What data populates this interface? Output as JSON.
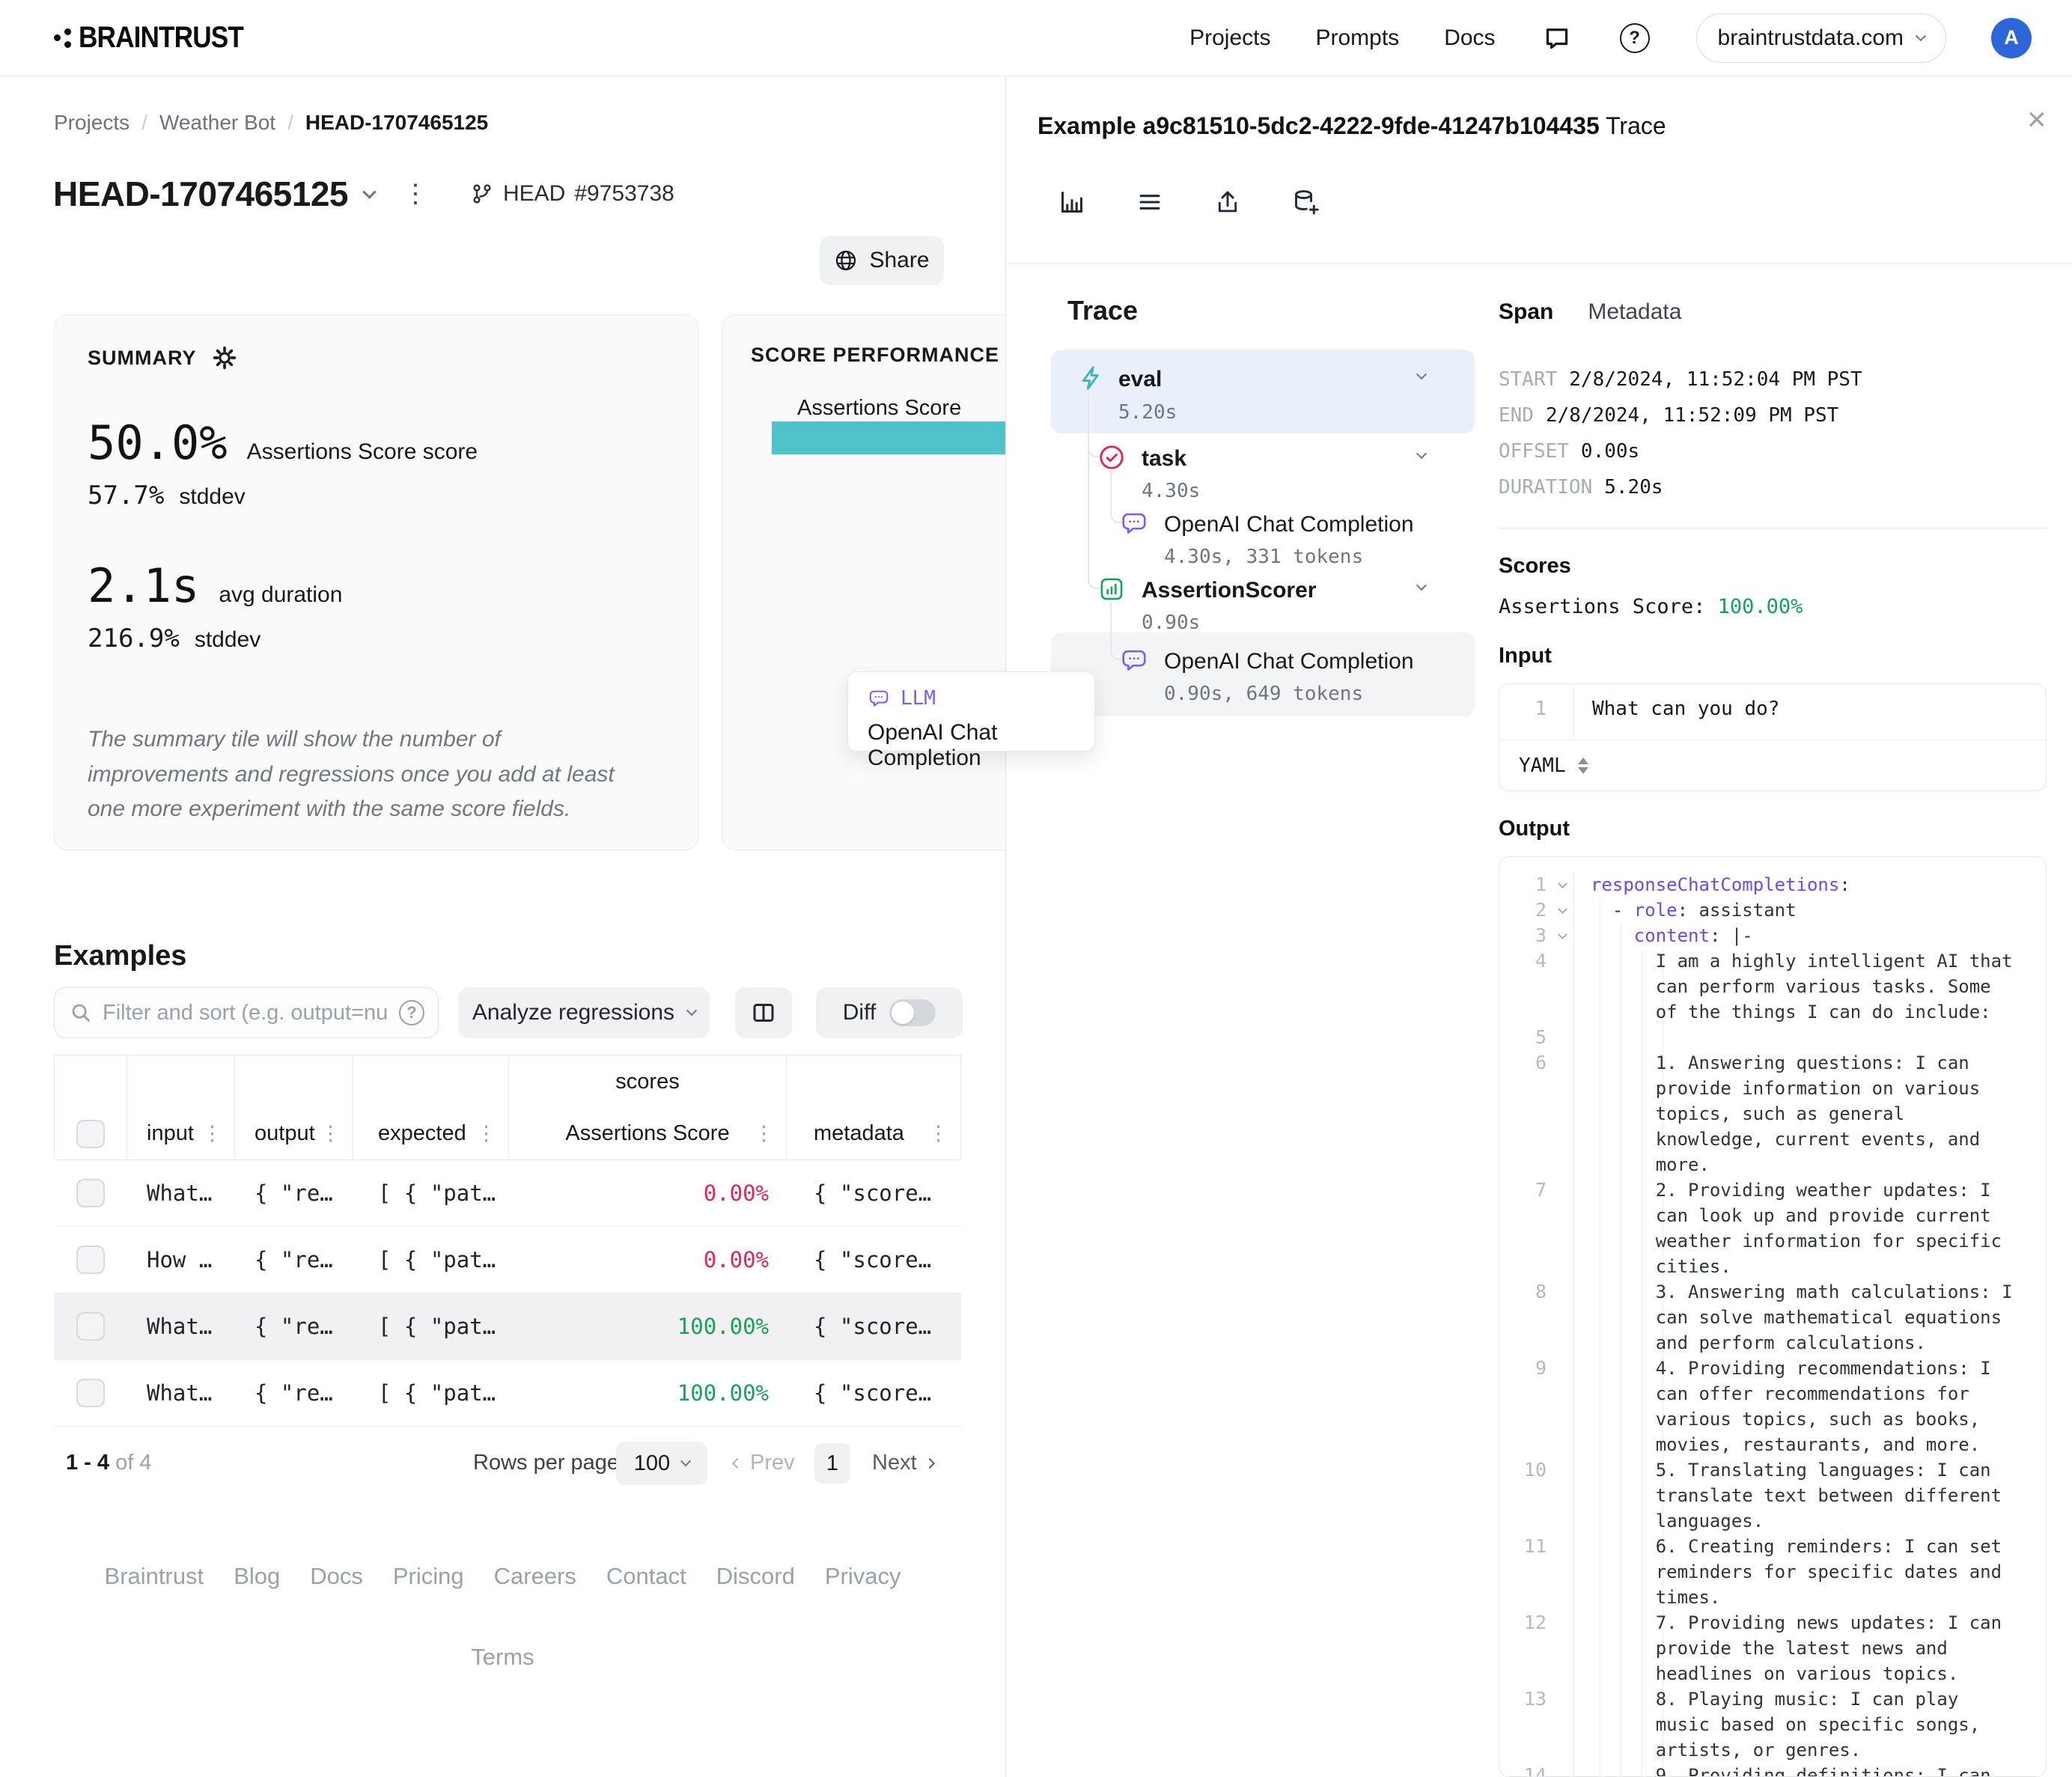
{
  "icons": {
    "kebab": "⋮",
    "close": "×",
    "help": "?"
  },
  "nav": {
    "items": [
      {
        "label": "Projects"
      },
      {
        "label": "Prompts"
      },
      {
        "label": "Docs"
      }
    ],
    "logo_text": "BRAINTRUST",
    "org": "braintrustdata.com",
    "avatar_initial": "A"
  },
  "breadcrumb": {
    "separator": "/",
    "items": [
      "Projects",
      "Weather Bot",
      "HEAD-1707465125"
    ]
  },
  "experiment": {
    "title": "HEAD-1707465125",
    "branch": "HEAD",
    "commit": "#9753738",
    "share_label": "Share"
  },
  "summary": {
    "heading": "SUMMARY",
    "score_value": "50.0%",
    "score_label": "Assertions Score score",
    "score_stddev": "57.7%",
    "stddev_label": "stddev",
    "duration_value": "2.1s",
    "duration_label": "avg duration",
    "duration_stddev": "216.9%",
    "note": "The summary tile will show the number of improvements and regressions once you add at least one more experiment with the same score fields."
  },
  "score_performance": {
    "heading": "SCORE PERFORMANCE OVER TIME",
    "series_label": "Assertions Score",
    "bar_color": "#4ec3ca",
    "chart_data": {
      "type": "bar",
      "categories": [
        "Assertions Score"
      ],
      "values": [
        50.0
      ],
      "title": "SCORE PERFORMANCE OVER TIME"
    }
  },
  "tooltip": {
    "type_label": "LLM",
    "title": "OpenAI Chat Completion"
  },
  "examples": {
    "heading": "Examples",
    "filter_placeholder": "Filter and sort (e.g. output=nu",
    "analyze_button": "Analyze regressions",
    "diff_label": "Diff",
    "scores_group": "scores",
    "columns": [
      "input",
      "output",
      "expected",
      "Assertions Score",
      "metadata"
    ],
    "rows": [
      {
        "input": "What…",
        "output": "{ \"re…",
        "expected": "[ { \"pat…",
        "score": "0.00%",
        "score_state": "fail",
        "metadata": "{ \"score…",
        "highlighted": false
      },
      {
        "input": "How …",
        "output": "{ \"re…",
        "expected": "[ { \"pat…",
        "score": "0.00%",
        "score_state": "fail",
        "metadata": "{ \"score…",
        "highlighted": false
      },
      {
        "input": "What…",
        "output": "{ \"re…",
        "expected": "[ { \"pat…",
        "score": "100.00%",
        "score_state": "pass",
        "metadata": "{ \"score…",
        "highlighted": true
      },
      {
        "input": "What…",
        "output": "{ \"re…",
        "expected": "[ { \"pat…",
        "score": "100.00%",
        "score_state": "pass",
        "metadata": "{ \"score…",
        "highlighted": false
      }
    ],
    "pagination": {
      "range": "1 - 4",
      "of": "of 4",
      "rows_per_page_label": "Rows per page:",
      "rows_per_page": "100",
      "prev": "Prev",
      "page": "1",
      "next": "Next"
    }
  },
  "footer": {
    "links": [
      "Braintrust",
      "Blog",
      "Docs",
      "Pricing",
      "Careers",
      "Contact",
      "Discord",
      "Privacy"
    ],
    "terms": "Terms"
  },
  "trace_panel": {
    "title_id": "Example a9c81510-5dc2-4222-9fde-41247b104435",
    "title_suffix": " Trace",
    "heading": "Trace",
    "nodes": [
      {
        "label": "eval",
        "duration": "5.20s",
        "type": "eval"
      },
      {
        "label": "task",
        "duration": "4.30s",
        "type": "task"
      },
      {
        "label": "OpenAI Chat Completion",
        "duration": "4.30s, 331 tokens",
        "type": "llm"
      },
      {
        "label": "AssertionScorer",
        "duration": "0.90s",
        "type": "scorer"
      },
      {
        "label": "OpenAI Chat Completion",
        "duration": "0.90s, 649 tokens",
        "type": "llm"
      }
    ]
  },
  "span_detail": {
    "tabs": [
      "Span",
      "Metadata"
    ],
    "fields": [
      {
        "label": "START",
        "value": "2/8/2024, 11:52:04 PM PST"
      },
      {
        "label": "END",
        "value": "2/8/2024, 11:52:09 PM PST"
      },
      {
        "label": "OFFSET",
        "value": "0.00s"
      },
      {
        "label": "DURATION",
        "value": "5.20s"
      }
    ],
    "scores_heading": "Scores",
    "score_name": "Assertions Score: ",
    "score_value": "100.00%",
    "input_heading": "Input",
    "input_line_no": "1",
    "input_value": "What can you do?",
    "format_label": "YAML",
    "output_heading": "Output",
    "output_lines": [
      {
        "n": "1",
        "fold": true,
        "indent": 0,
        "parts": [
          {
            "k": "responseChatCompletions"
          },
          {
            "p": ":"
          }
        ]
      },
      {
        "n": "2",
        "fold": true,
        "indent": 2,
        "parts": [
          {
            "p": "- "
          },
          {
            "k": "role"
          },
          {
            "p": ": assistant"
          }
        ]
      },
      {
        "n": "3",
        "fold": true,
        "indent": 4,
        "parts": [
          {
            "k": "content"
          },
          {
            "p": ": |-"
          }
        ]
      },
      {
        "n": "4",
        "fold": false,
        "indent": 6,
        "parts": [
          {
            "p": "I am a highly intelligent AI that can perform various tasks. Some of the things I can do include:"
          }
        ]
      },
      {
        "n": "5",
        "fold": false,
        "indent": 6,
        "parts": []
      },
      {
        "n": "6",
        "fold": false,
        "indent": 6,
        "parts": [
          {
            "p": "1. Answering questions: I can provide information on various topics, such as general knowledge, current events, and more."
          }
        ]
      },
      {
        "n": "7",
        "fold": false,
        "indent": 6,
        "parts": [
          {
            "p": "2. Providing weather updates: I can look up and provide current weather information for specific cities."
          }
        ]
      },
      {
        "n": "8",
        "fold": false,
        "indent": 6,
        "parts": [
          {
            "p": "3. Answering math calculations: I can solve mathematical equations and perform calculations."
          }
        ]
      },
      {
        "n": "9",
        "fold": false,
        "indent": 6,
        "parts": [
          {
            "p": "4. Providing recommendations: I can offer recommendations for various topics, such as books, movies, restaurants, and more."
          }
        ]
      },
      {
        "n": "10",
        "fold": false,
        "indent": 6,
        "parts": [
          {
            "p": "5. Translating languages: I can translate text between different languages."
          }
        ]
      },
      {
        "n": "11",
        "fold": false,
        "indent": 6,
        "parts": [
          {
            "p": "6. Creating reminders: I can set reminders for specific dates and times."
          }
        ]
      },
      {
        "n": "12",
        "fold": false,
        "indent": 6,
        "parts": [
          {
            "p": "7. Providing news updates: I can provide the latest news and headlines on various topics."
          }
        ]
      },
      {
        "n": "13",
        "fold": false,
        "indent": 6,
        "parts": [
          {
            "p": "8. Playing music: I can play music based on specific songs, artists, or genres."
          }
        ]
      },
      {
        "n": "14",
        "fold": false,
        "indent": 6,
        "parts": [
          {
            "p": "9. Providing definitions: I can"
          }
        ]
      }
    ]
  }
}
